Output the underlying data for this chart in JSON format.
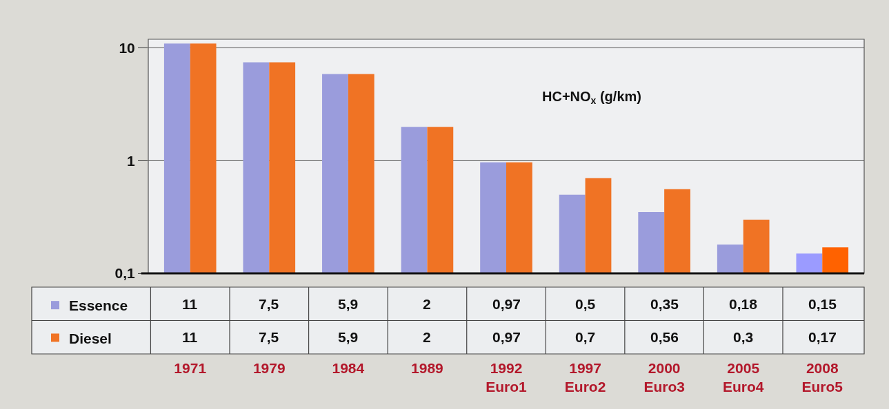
{
  "chart_data": {
    "type": "bar",
    "title": "HC+NO$_{x}$ (g/km)",
    "categories": [
      "1971",
      "1979",
      "1984",
      "1989",
      "1992\nEuro1",
      "1997\nEuro2",
      "2000\nEuro3",
      "2005\nEuro4",
      "2008\nEuro5"
    ],
    "series": [
      {
        "name": "Essence",
        "colors": [
          "#9a9cdc",
          "#9a9cdc",
          "#9a9cdc",
          "#9a9cdc",
          "#9a9cdc",
          "#9a9cdc",
          "#9a9cdc",
          "#9a9cdc",
          "#9b9bff"
        ],
        "values": [
          11,
          7.5,
          5.9,
          2,
          0.97,
          0.5,
          0.35,
          0.18,
          0.15
        ],
        "value_labels": [
          "11",
          "7,5",
          "5,9",
          "2",
          "0,97",
          "0,5",
          "0,35",
          "0,18",
          "0,15"
        ]
      },
      {
        "name": "Diesel",
        "colors": [
          "#f07324",
          "#f07324",
          "#f07324",
          "#f07324",
          "#f07324",
          "#f07324",
          "#f07324",
          "#f07324",
          "#ff6200"
        ],
        "values": [
          11,
          7.5,
          5.9,
          2,
          0.97,
          0.7,
          0.56,
          0.3,
          0.17
        ],
        "value_labels": [
          "11",
          "7,5",
          "5,9",
          "2",
          "0,97",
          "0,7",
          "0,56",
          "0,3",
          "0,17"
        ]
      }
    ],
    "log": true,
    "ylim": [
      0.1,
      12
    ],
    "yticks": [
      {
        "value": 0.1,
        "label": "0,1"
      },
      1,
      10
    ],
    "grid": "y",
    "legend": "bottom left"
  }
}
